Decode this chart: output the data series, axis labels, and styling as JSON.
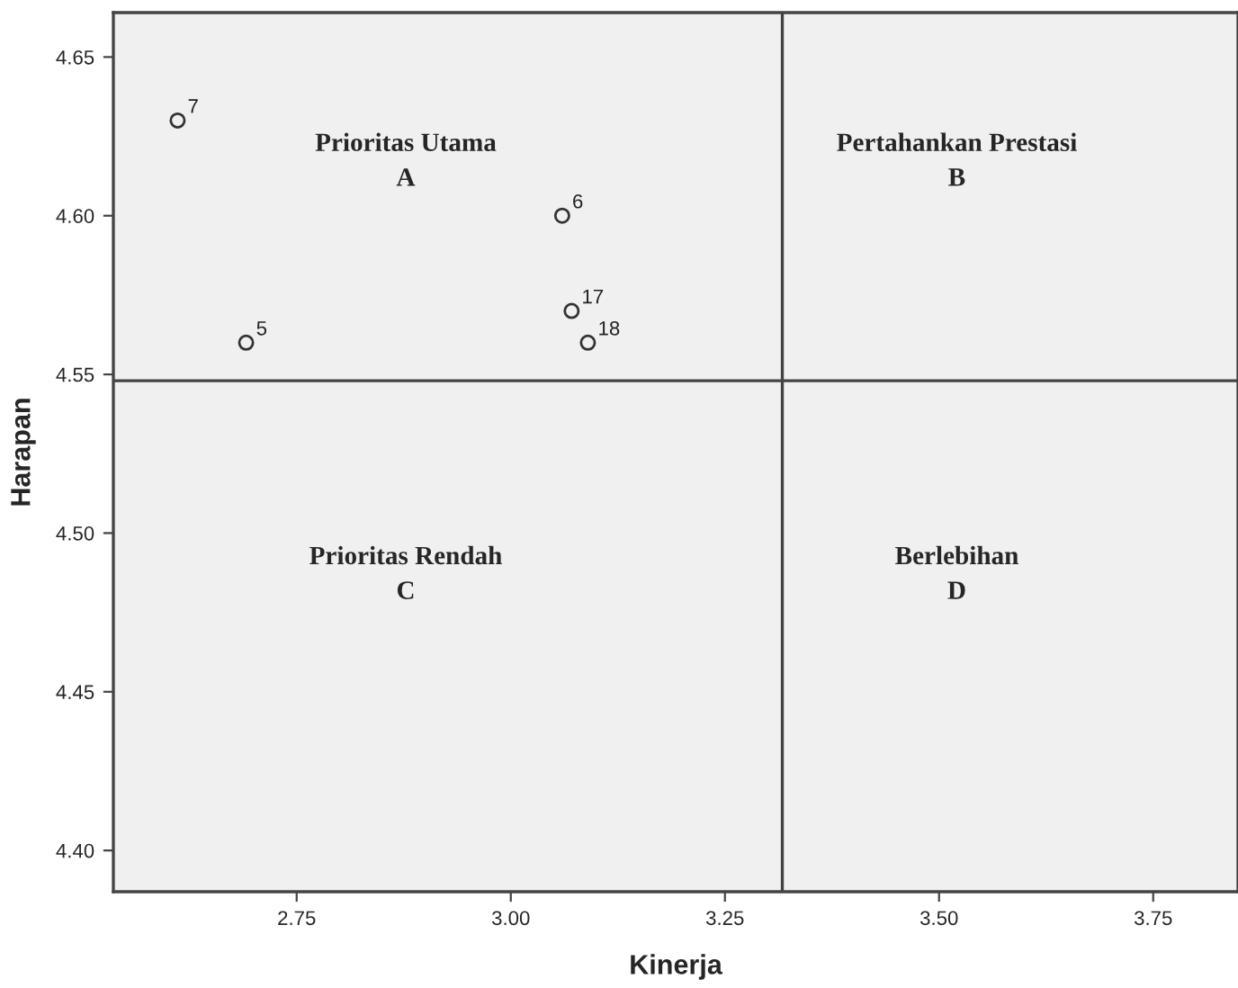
{
  "chart_data": {
    "type": "scatter",
    "xlabel": "Kinerja",
    "ylabel": "Harapan",
    "x": [
      2.611,
      2.691,
      3.06,
      3.071,
      3.09
    ],
    "values": [
      4.63,
      4.56,
      4.6,
      4.57,
      4.56
    ],
    "color": "#333333",
    "marker": "circle",
    "grid": false,
    "legend": false,
    "xlim": [
      2.536,
      3.849
    ],
    "ylim": [
      4.387,
      4.664
    ],
    "xticks": [
      {
        "value": 2.75,
        "label": "2.75"
      },
      {
        "value": 3.0,
        "label": "3.00"
      },
      {
        "value": 3.25,
        "label": "3.25"
      },
      {
        "value": 3.5,
        "label": "3.50"
      },
      {
        "value": 3.75,
        "label": "3.75"
      }
    ],
    "yticks": [
      {
        "value": 4.4,
        "label": "4.40"
      },
      {
        "value": 4.45,
        "label": "4.45"
      },
      {
        "value": 4.5,
        "label": "4.50"
      },
      {
        "value": 4.55,
        "label": "4.55"
      },
      {
        "value": 4.6,
        "label": "4.60"
      },
      {
        "value": 4.65,
        "label": "4.65"
      }
    ],
    "ref_lines": [
      {
        "axis": "x",
        "value": 3.317,
        "color": "#444444"
      },
      {
        "axis": "y",
        "value": 4.548,
        "color": "#444444"
      }
    ],
    "annotations": [
      "Prioritas Utama\nA",
      "Pertahankan Prestasi\nB",
      "Prioritas Rendah\nC",
      "Berlebihan\nD",
      {
        "text": "7",
        "x": 2.611,
        "y": 4.63
      },
      {
        "text": "5",
        "x": 2.691,
        "y": 4.56
      },
      {
        "text": "6",
        "x": 3.06,
        "y": 4.6
      },
      {
        "text": "17",
        "x": 3.071,
        "y": 4.57
      },
      {
        "text": "18",
        "x": 3.09,
        "y": 4.56
      }
    ]
  }
}
